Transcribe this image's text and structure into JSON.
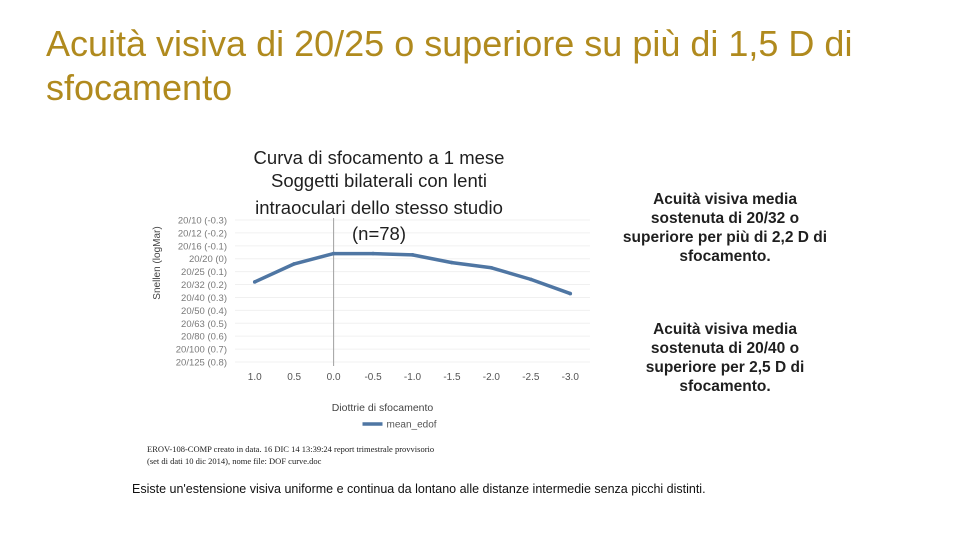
{
  "slide": {
    "title": "Acuità visiva di 20/25 o superiore su più di 1,5 D di sfocamento",
    "callout_top": "Acuità visiva media sostenuta di 20/32 o superiore per più di 2,2 D di sfocamento.",
    "callout_bottom": "Acuità visiva media sostenuta di 20/40 o superiore per 2,5 D di sfocamento.",
    "footnote_line1": "EROV-108-COMP creato in data. 16 DIC 14 13:39:24 report trimestrale provvisorio",
    "footnote_line2": "(set di dati 10 dic 2014), nome file: DOF curve.doc",
    "bottom_note": "Esiste un'estensione visiva uniforme e continua da lontano alle distanze intermedie senza picchi distinti."
  },
  "chart_data": {
    "type": "line",
    "title_lines": [
      "Curva di sfocamento a 1 mese",
      "Soggetti bilaterali con lenti",
      "intraoculari dello stesso studio",
      "(n=78)"
    ],
    "xlabel": "Diottrie di sfocamento",
    "ylabel": "Snellen (logMar)",
    "categories": [
      "1.0",
      "0.5",
      "0.0",
      "-0.5",
      "-1.0",
      "-1.5",
      "-2.0",
      "-2.5",
      "-3.0"
    ],
    "y_tick_labels": [
      "20/10 (-0.3)",
      "20/12 (-0.2)",
      "20/16 (-0.1)",
      "20/20 (0)",
      "20/25 (0.1)",
      "20/32 (0.2)",
      "20/40 (0.3)",
      "20/50 (0.4)",
      "20/63 (0.5)",
      "20/80 (0.6)",
      "20/100 (0.7)",
      "20/125 (0.8)"
    ],
    "ylim": [
      -0.3,
      0.8
    ],
    "y_inverted": true,
    "series": [
      {
        "name": "mean_edof",
        "values": [
          0.18,
          0.04,
          -0.04,
          -0.04,
          -0.03,
          0.03,
          0.07,
          0.16,
          0.27
        ]
      }
    ],
    "color": "#4f76a3",
    "vertical_reference_at": "0.0",
    "legend_position": "bottom"
  }
}
